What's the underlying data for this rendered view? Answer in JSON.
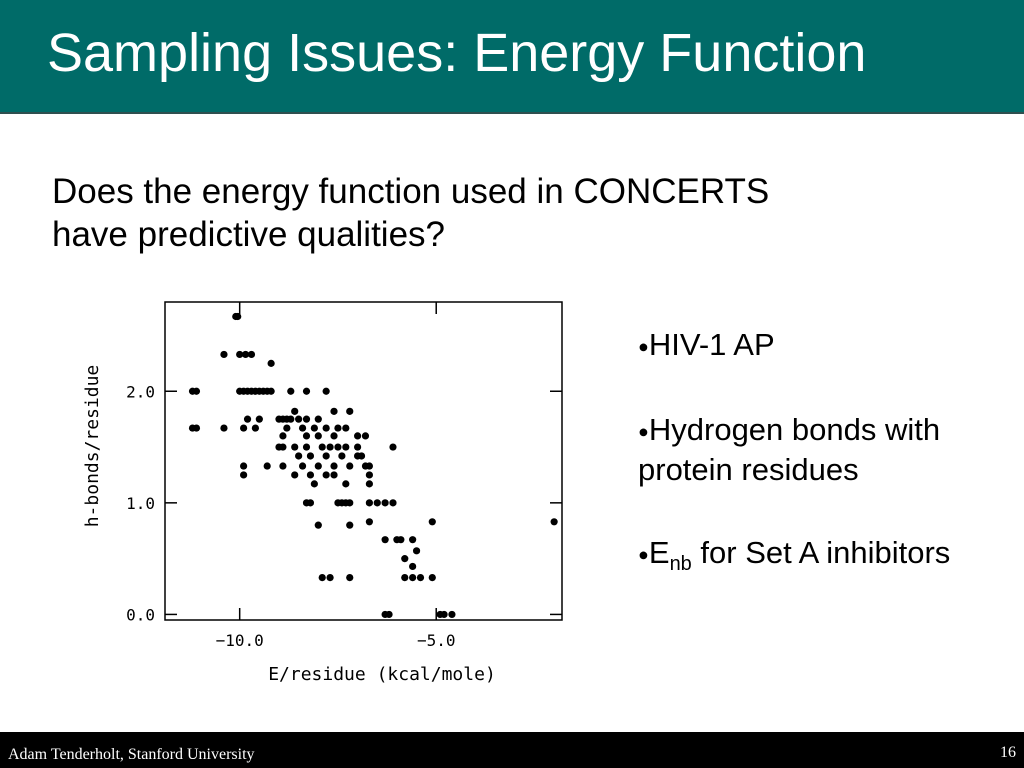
{
  "slide": {
    "title": "Sampling Issues: Energy Function",
    "question_lines": [
      "Does the energy function used in CONCERTS",
      "have predictive qualities?"
    ],
    "bullets": [
      {
        "marker": "●",
        "text": "HIV-1 AP"
      },
      {
        "marker": "●",
        "text": "Hydrogen bonds with protein residues"
      },
      {
        "marker": "●",
        "base": "E",
        "sub": "nb",
        "rest": " for Set A inhibitors"
      }
    ],
    "footer_author": "Adam Tenderholt, Stanford University",
    "page_number": "16",
    "colors": {
      "title_bg": "#006b68",
      "footer_bg": "#000000"
    }
  },
  "chart_data": {
    "type": "scatter",
    "xlabel": "E/residue (kcal/mole)",
    "ylabel": "h-bonds/residue",
    "xlim": [
      -11.9,
      -1.8
    ],
    "ylim": [
      -0.05,
      2.8
    ],
    "x_ticks": [
      {
        "value": -10.0,
        "label": "−10.0"
      },
      {
        "value": -5.0,
        "label": "−5.0"
      }
    ],
    "y_ticks": [
      {
        "value": 0.0,
        "label": "0.0"
      },
      {
        "value": 1.0,
        "label": "1.0"
      },
      {
        "value": 2.0,
        "label": "2.0"
      }
    ],
    "grid": false,
    "points": [
      [
        -10.1,
        2.67
      ],
      [
        -10.05,
        2.67
      ],
      [
        -10.4,
        2.33
      ],
      [
        -10.0,
        2.33
      ],
      [
        -9.85,
        2.33
      ],
      [
        -9.7,
        2.33
      ],
      [
        -9.2,
        2.25
      ],
      [
        -11.2,
        2.0
      ],
      [
        -11.1,
        2.0
      ],
      [
        -10.0,
        2.0
      ],
      [
        -9.9,
        2.0
      ],
      [
        -9.8,
        2.0
      ],
      [
        -9.7,
        2.0
      ],
      [
        -9.6,
        2.0
      ],
      [
        -9.5,
        2.0
      ],
      [
        -9.4,
        2.0
      ],
      [
        -9.3,
        2.0
      ],
      [
        -9.2,
        2.0
      ],
      [
        -8.7,
        2.0
      ],
      [
        -8.3,
        2.0
      ],
      [
        -7.8,
        2.0
      ],
      [
        -8.6,
        1.82
      ],
      [
        -7.6,
        1.82
      ],
      [
        -7.2,
        1.82
      ],
      [
        -9.8,
        1.75
      ],
      [
        -9.5,
        1.75
      ],
      [
        -9.0,
        1.75
      ],
      [
        -8.9,
        1.75
      ],
      [
        -8.8,
        1.75
      ],
      [
        -8.7,
        1.75
      ],
      [
        -8.5,
        1.75
      ],
      [
        -8.3,
        1.75
      ],
      [
        -8.0,
        1.75
      ],
      [
        -11.2,
        1.67
      ],
      [
        -11.1,
        1.67
      ],
      [
        -10.4,
        1.67
      ],
      [
        -9.9,
        1.67
      ],
      [
        -9.6,
        1.67
      ],
      [
        -8.8,
        1.67
      ],
      [
        -8.4,
        1.67
      ],
      [
        -8.1,
        1.67
      ],
      [
        -7.8,
        1.67
      ],
      [
        -7.5,
        1.67
      ],
      [
        -7.3,
        1.67
      ],
      [
        -8.9,
        1.6
      ],
      [
        -8.3,
        1.6
      ],
      [
        -8.0,
        1.6
      ],
      [
        -7.6,
        1.6
      ],
      [
        -7.0,
        1.6
      ],
      [
        -6.8,
        1.6
      ],
      [
        -9.0,
        1.5
      ],
      [
        -8.9,
        1.5
      ],
      [
        -8.6,
        1.5
      ],
      [
        -8.3,
        1.5
      ],
      [
        -7.9,
        1.5
      ],
      [
        -7.7,
        1.5
      ],
      [
        -7.5,
        1.5
      ],
      [
        -7.3,
        1.5
      ],
      [
        -7.0,
        1.5
      ],
      [
        -6.1,
        1.5
      ],
      [
        -8.5,
        1.42
      ],
      [
        -8.2,
        1.42
      ],
      [
        -7.8,
        1.42
      ],
      [
        -7.4,
        1.42
      ],
      [
        -7.0,
        1.42
      ],
      [
        -6.9,
        1.42
      ],
      [
        -9.9,
        1.33
      ],
      [
        -9.3,
        1.33
      ],
      [
        -8.9,
        1.33
      ],
      [
        -8.4,
        1.33
      ],
      [
        -8.0,
        1.33
      ],
      [
        -7.6,
        1.33
      ],
      [
        -7.2,
        1.33
      ],
      [
        -6.8,
        1.33
      ],
      [
        -6.7,
        1.33
      ],
      [
        -9.9,
        1.25
      ],
      [
        -8.6,
        1.25
      ],
      [
        -8.2,
        1.25
      ],
      [
        -7.8,
        1.25
      ],
      [
        -7.6,
        1.25
      ],
      [
        -6.7,
        1.25
      ],
      [
        -8.1,
        1.17
      ],
      [
        -7.3,
        1.17
      ],
      [
        -6.7,
        1.17
      ],
      [
        -8.3,
        1.0
      ],
      [
        -8.2,
        1.0
      ],
      [
        -7.5,
        1.0
      ],
      [
        -7.4,
        1.0
      ],
      [
        -7.3,
        1.0
      ],
      [
        -7.2,
        1.0
      ],
      [
        -6.7,
        1.0
      ],
      [
        -6.5,
        1.0
      ],
      [
        -6.3,
        1.0
      ],
      [
        -6.1,
        1.0
      ],
      [
        -8.0,
        0.8
      ],
      [
        -7.2,
        0.8
      ],
      [
        -6.7,
        0.83
      ],
      [
        -5.1,
        0.83
      ],
      [
        -2.0,
        0.83
      ],
      [
        -6.3,
        0.67
      ],
      [
        -6.0,
        0.67
      ],
      [
        -5.9,
        0.67
      ],
      [
        -5.6,
        0.67
      ],
      [
        -5.5,
        0.57
      ],
      [
        -5.8,
        0.5
      ],
      [
        -5.6,
        0.43
      ],
      [
        -7.9,
        0.33
      ],
      [
        -7.7,
        0.33
      ],
      [
        -7.2,
        0.33
      ],
      [
        -5.8,
        0.33
      ],
      [
        -5.6,
        0.33
      ],
      [
        -5.4,
        0.33
      ],
      [
        -5.1,
        0.33
      ],
      [
        -6.3,
        0.0
      ],
      [
        -6.2,
        0.0
      ],
      [
        -4.9,
        0.0
      ],
      [
        -4.8,
        0.0
      ],
      [
        -4.6,
        0.0
      ]
    ]
  }
}
